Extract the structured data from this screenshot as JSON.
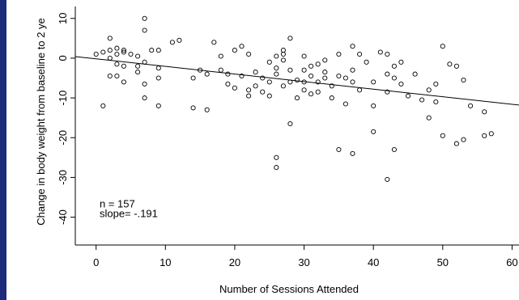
{
  "chart_data": {
    "type": "scatter",
    "title": "",
    "xlabel": "Number of Sessions Attended",
    "ylabel": "Change in body weight from baseline to 2 ye",
    "xlim": [
      -3,
      61
    ],
    "ylim": [
      -47,
      13
    ],
    "xticks": [
      "0",
      "10",
      "20",
      "30",
      "40",
      "50",
      "60"
    ],
    "yticks": [
      "10",
      "0",
      "-10",
      "-20",
      "-30",
      "-40"
    ],
    "grid": false,
    "annotations": [
      "n = 157",
      "slope= -.191"
    ],
    "trendline": {
      "x": [
        -3,
        61
      ],
      "y": [
        0.4,
        -11.8
      ]
    },
    "points": [
      [
        0,
        1
      ],
      [
        1,
        -12
      ],
      [
        1,
        1.5
      ],
      [
        2,
        2
      ],
      [
        2,
        5
      ],
      [
        2,
        -4.5
      ],
      [
        2,
        0
      ],
      [
        3,
        2.5
      ],
      [
        3,
        -1.5
      ],
      [
        3,
        -4.5
      ],
      [
        3,
        1
      ],
      [
        4,
        2
      ],
      [
        4,
        -2
      ],
      [
        4,
        -6
      ],
      [
        4,
        1.5
      ],
      [
        5,
        1
      ],
      [
        6,
        -2
      ],
      [
        6,
        0.5
      ],
      [
        6,
        -3.5
      ],
      [
        7,
        10
      ],
      [
        7,
        7
      ],
      [
        7,
        -1
      ],
      [
        7,
        -6.5
      ],
      [
        7,
        -10
      ],
      [
        8,
        2
      ],
      [
        9,
        -2.5
      ],
      [
        9,
        -5
      ],
      [
        9,
        -12
      ],
      [
        9,
        2
      ],
      [
        11,
        4
      ],
      [
        12,
        4.5
      ],
      [
        14,
        -5
      ],
      [
        14,
        -12.5
      ],
      [
        15,
        -3
      ],
      [
        16,
        -4
      ],
      [
        16,
        -13
      ],
      [
        17,
        4
      ],
      [
        18,
        0.5
      ],
      [
        18,
        -3
      ],
      [
        19,
        -6.5
      ],
      [
        19,
        -4
      ],
      [
        20,
        -7.5
      ],
      [
        20,
        2
      ],
      [
        21,
        3
      ],
      [
        21,
        -4.5
      ],
      [
        22,
        1
      ],
      [
        22,
        -8
      ],
      [
        22,
        -9.5
      ],
      [
        23,
        -3.5
      ],
      [
        23,
        -7
      ],
      [
        24,
        -5
      ],
      [
        24,
        -8.5
      ],
      [
        25,
        -1
      ],
      [
        25,
        -9.5
      ],
      [
        25,
        -6
      ],
      [
        26,
        0.5
      ],
      [
        26,
        -2.5
      ],
      [
        26,
        -4
      ],
      [
        26,
        -25
      ],
      [
        26,
        -27.5
      ],
      [
        27,
        2
      ],
      [
        27,
        -0.5
      ],
      [
        27,
        -7
      ],
      [
        27,
        1
      ],
      [
        28,
        5
      ],
      [
        28,
        -3
      ],
      [
        28,
        -6
      ],
      [
        28,
        -16.5
      ],
      [
        29,
        -5.5
      ],
      [
        29,
        -10
      ],
      [
        30,
        -3
      ],
      [
        30,
        -6
      ],
      [
        30,
        -8
      ],
      [
        30,
        0.5
      ],
      [
        31,
        -2
      ],
      [
        31,
        -4.5
      ],
      [
        31,
        -9
      ],
      [
        32,
        -1.5
      ],
      [
        32,
        -6
      ],
      [
        32,
        -8.5
      ],
      [
        33,
        -0.5
      ],
      [
        33,
        -3.5
      ],
      [
        33,
        -5
      ],
      [
        34,
        -7
      ],
      [
        34,
        -10
      ],
      [
        35,
        1
      ],
      [
        35,
        -4.5
      ],
      [
        35,
        -23
      ],
      [
        36,
        -5
      ],
      [
        36,
        -11.5
      ],
      [
        37,
        3
      ],
      [
        37,
        -3
      ],
      [
        37,
        -6
      ],
      [
        37,
        -24
      ],
      [
        38,
        1
      ],
      [
        38,
        -8
      ],
      [
        39,
        -1
      ],
      [
        40,
        -6
      ],
      [
        40,
        -12
      ],
      [
        40,
        -18.5
      ],
      [
        41,
        1.5
      ],
      [
        42,
        1
      ],
      [
        42,
        -4
      ],
      [
        42,
        -8.5
      ],
      [
        42,
        -30.5
      ],
      [
        43,
        -2
      ],
      [
        43,
        -5
      ],
      [
        43,
        -23
      ],
      [
        44,
        -1
      ],
      [
        44,
        -6.5
      ],
      [
        45,
        -9.5
      ],
      [
        46,
        -4
      ],
      [
        47,
        -10.5
      ],
      [
        48,
        -8
      ],
      [
        48,
        -15
      ],
      [
        49,
        -6.5
      ],
      [
        49,
        -11
      ],
      [
        50,
        3
      ],
      [
        50,
        -19.5
      ],
      [
        51,
        -1.5
      ],
      [
        52,
        -21.5
      ],
      [
        52,
        -2
      ],
      [
        53,
        -20.5
      ],
      [
        53,
        -5.5
      ],
      [
        54,
        -12
      ],
      [
        56,
        -13.5
      ],
      [
        56,
        -19.5
      ],
      [
        57,
        -19
      ]
    ]
  }
}
